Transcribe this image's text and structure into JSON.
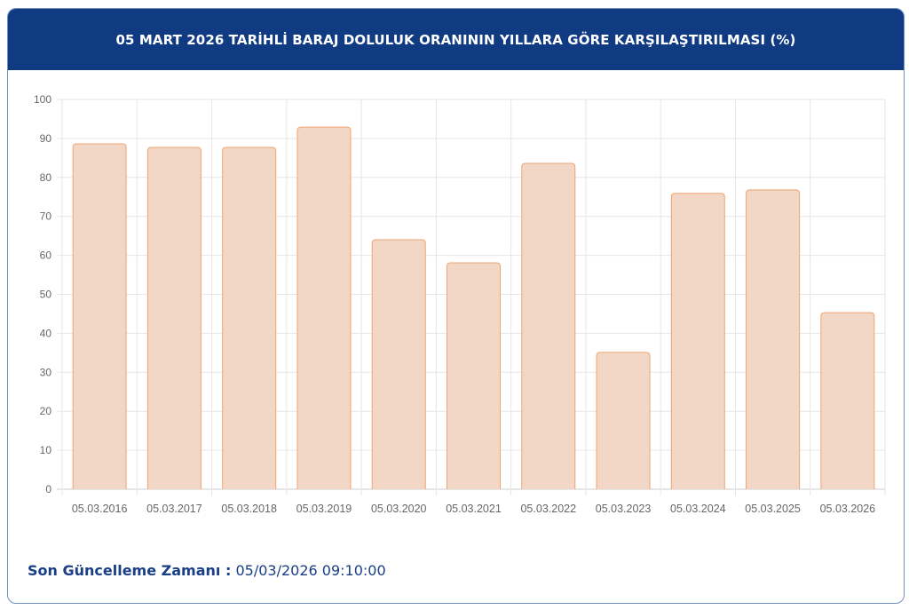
{
  "header": {
    "title": "05 MART 2026 TARİHLİ BARAJ DOLULUK ORANININ YILLARA GÖRE KARŞILAŞTIRILMASI (%)"
  },
  "chart_data": {
    "type": "bar",
    "title": "05 MART 2026 TARİHLİ BARAJ DOLULUK ORANININ YILLARA GÖRE KARŞILAŞTIRILMASI (%)",
    "categories": [
      "05.03.2016",
      "05.03.2017",
      "05.03.2018",
      "05.03.2019",
      "05.03.2020",
      "05.03.2021",
      "05.03.2022",
      "05.03.2023",
      "05.03.2024",
      "05.03.2025",
      "05.03.2026"
    ],
    "values": [
      88.6,
      87.7,
      87.7,
      92.9,
      64.0,
      58.1,
      83.6,
      35.1,
      75.9,
      76.8,
      45.3
    ],
    "ylim": [
      0,
      100
    ],
    "yticks": [
      0,
      10,
      20,
      30,
      40,
      50,
      60,
      70,
      80,
      90,
      100
    ],
    "grid": true,
    "colors": {
      "bar_fill": "#f2d7c6",
      "bar_stroke": "#eea572",
      "header": "#103a82"
    }
  },
  "footer": {
    "label": "Son Güncelleme Zamanı :",
    "value": "05/03/2026 09:10:00"
  }
}
